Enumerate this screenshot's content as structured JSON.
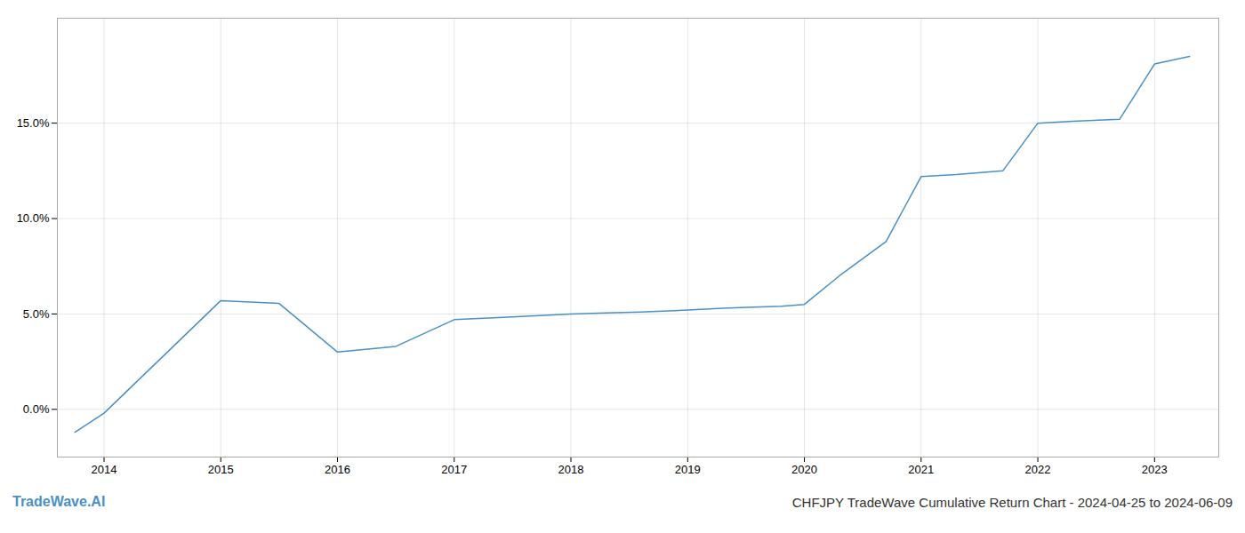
{
  "chart_data": {
    "type": "line",
    "title": "CHFJPY TradeWave Cumulative Return Chart - 2024-04-25 to 2024-06-09",
    "annotations": [
      "TradeWave.AI"
    ],
    "x": [
      2013.75,
      2014.0,
      2015.0,
      2015.5,
      2016.0,
      2016.5,
      2017.0,
      2017.5,
      2018.0,
      2018.3,
      2018.6,
      2019.0,
      2019.3,
      2019.5,
      2019.8,
      2020.0,
      2020.3,
      2020.7,
      2021.0,
      2021.3,
      2021.7,
      2022.0,
      2022.3,
      2022.7,
      2023.0,
      2023.3
    ],
    "values": [
      -1.2,
      -0.2,
      5.7,
      5.55,
      3.0,
      3.3,
      4.7,
      4.85,
      5.0,
      5.05,
      5.1,
      5.2,
      5.3,
      5.35,
      5.4,
      5.5,
      7.0,
      8.8,
      12.2,
      12.3,
      12.5,
      15.0,
      15.1,
      15.2,
      18.1,
      18.5
    ],
    "color": "#4a90c4",
    "xlim": [
      2013.6,
      2023.55
    ],
    "xticks": [
      2014,
      2015,
      2016,
      2017,
      2018,
      2019,
      2020,
      2021,
      2022,
      2023
    ],
    "ylim": [
      -2.5,
      20.5
    ],
    "yticks": [
      {
        "value": 0.0,
        "label": "0.0%"
      },
      {
        "value": 5.0,
        "label": "5.0%"
      },
      {
        "value": 10.0,
        "label": "10.0%"
      },
      {
        "value": 15.0,
        "label": "15.0%"
      }
    ],
    "grid": true
  }
}
